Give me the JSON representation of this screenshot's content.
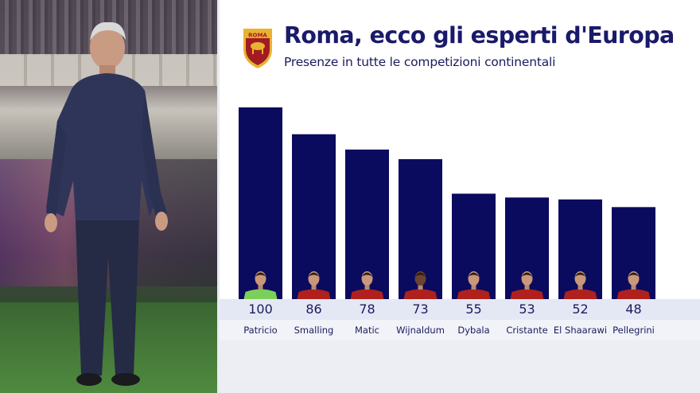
{
  "header": {
    "title": "Roma, ecco gli esperti d'Europa",
    "subtitle": "Presenze in tutte le competizioni continentali",
    "logo_text": "ROMA"
  },
  "colors": {
    "bar": "#0a0a5e",
    "title": "#1a1a6b",
    "jersey_red": "#b0201c",
    "keeper_green": "#7ccf5a"
  },
  "chart_data": {
    "type": "bar",
    "title": "Roma, ecco gli esperti d'Europa",
    "subtitle": "Presenze in tutte le competizioni continentali",
    "categories": [
      "Patricio",
      "Smalling",
      "Matic",
      "Wijnaldum",
      "Dybala",
      "Cristante",
      "El Shaarawi",
      "Pellegrini"
    ],
    "values": [
      100,
      86,
      78,
      73,
      55,
      53,
      52,
      48
    ],
    "ylim": [
      0,
      100
    ],
    "grid": false,
    "legend": "none"
  }
}
